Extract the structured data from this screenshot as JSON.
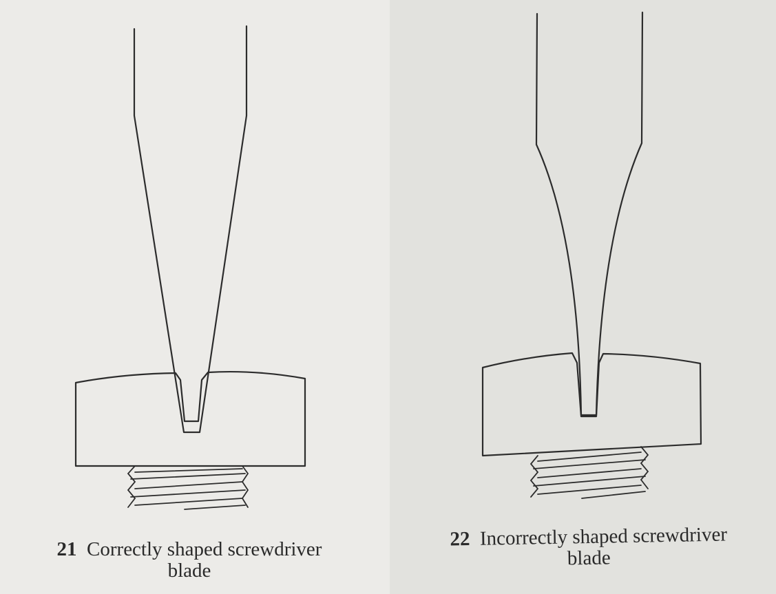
{
  "figures": [
    {
      "number": "21",
      "caption_line1": "Correctly shaped screwdriver",
      "caption_line2": "blade"
    },
    {
      "number": "22",
      "caption_line1": "Incorrectly shaped screwdriver",
      "caption_line2": "blade"
    }
  ]
}
